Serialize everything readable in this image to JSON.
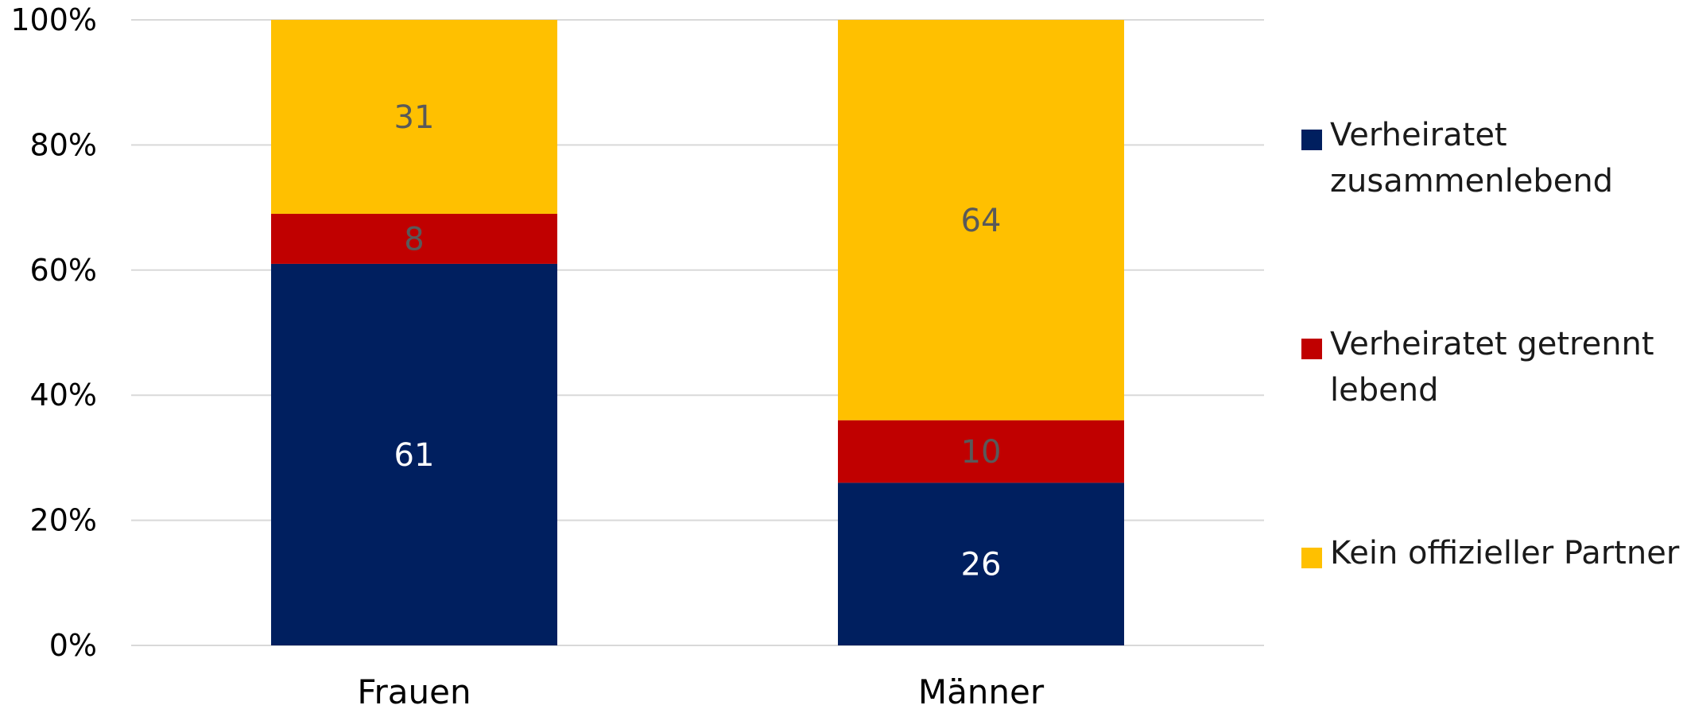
{
  "chart_data": {
    "type": "bar",
    "stacked": true,
    "categories": [
      "Frauen",
      "Männer"
    ],
    "series": [
      {
        "name": "Verheiratet zusammenlebend",
        "values": [
          61,
          26
        ],
        "color": "#001f5f",
        "label_color": "#ffffff"
      },
      {
        "name": "Verheiratet getrennt lebend",
        "values": [
          8,
          10
        ],
        "color": "#c00000",
        "label_color": "#595959"
      },
      {
        "name": "Kein offizieller Partner",
        "values": [
          31,
          64
        ],
        "color": "#ffc000",
        "label_color": "#595959"
      }
    ],
    "yticks": [
      "0%",
      "20%",
      "40%",
      "60%",
      "80%",
      "100%"
    ],
    "ylim": [
      0,
      100
    ],
    "grid": true,
    "legend_position": "right",
    "legend_lines": [
      [
        "Verheiratet",
        "zusammenlebend"
      ],
      [
        "Verheiratet getrennt",
        "lebend"
      ],
      [
        "Kein offizieller Partner"
      ]
    ],
    "title": "",
    "xlabel": "",
    "ylabel": ""
  }
}
